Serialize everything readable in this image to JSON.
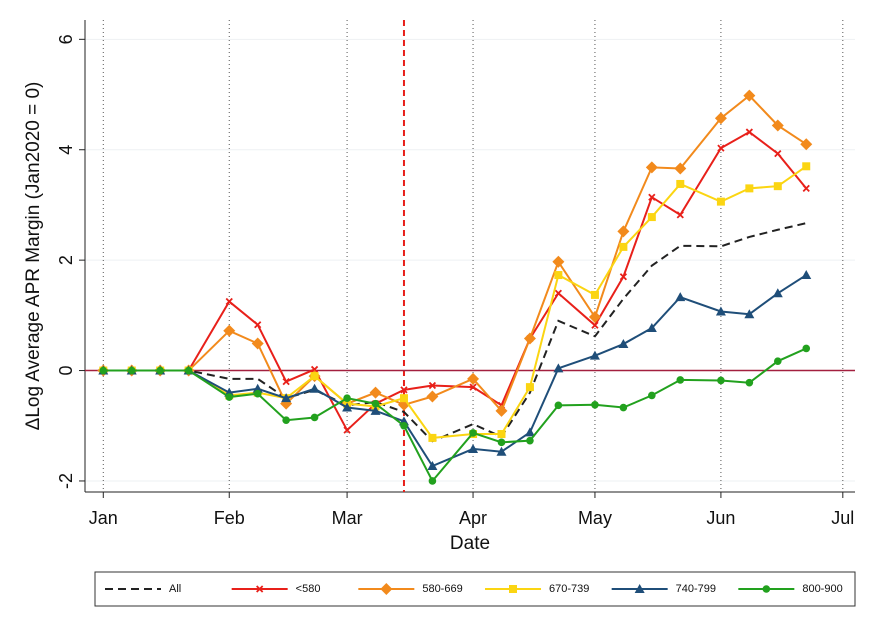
{
  "chart_data": {
    "type": "line",
    "y_label": "ΔLog Average APR Margin (Jan2020 = 0)",
    "x_label": "Date",
    "x": [
      0,
      7,
      14,
      21,
      31,
      38,
      45,
      52,
      60,
      67,
      74,
      81,
      91,
      98,
      105,
      112,
      121,
      128,
      135,
      142,
      152,
      159,
      166,
      173
    ],
    "xlim": [
      -4.5,
      185
    ],
    "xticks": [
      {
        "value": 0,
        "label": "Jan"
      },
      {
        "value": 31,
        "label": "Feb"
      },
      {
        "value": 60,
        "label": "Mar"
      },
      {
        "value": 91,
        "label": "Apr"
      },
      {
        "value": 121,
        "label": "May"
      },
      {
        "value": 152,
        "label": "Jun"
      },
      {
        "value": 182,
        "label": "Jul"
      }
    ],
    "ylim": [
      -2.2,
      6.35
    ],
    "yticks": [
      -2,
      0,
      2,
      4,
      6
    ],
    "grid": true,
    "vline": 74,
    "hline": 0,
    "legend": "bottom",
    "series": [
      {
        "name": "All",
        "color": "#222222",
        "marker": "none",
        "dash": true,
        "values": [
          0,
          0,
          0,
          0,
          -0.15,
          -0.15,
          -0.5,
          -0.35,
          -0.63,
          -0.57,
          -0.75,
          -1.28,
          -0.97,
          -1.2,
          -0.4,
          0.9,
          0.62,
          1.3,
          1.9,
          2.26,
          2.25,
          2.42,
          2.55,
          2.67
        ]
      },
      {
        "name": "<580",
        "color": "#e8201a",
        "marker": "x",
        "dash": false,
        "values": [
          0,
          0,
          0,
          0,
          1.25,
          0.83,
          -0.2,
          0.02,
          -1.08,
          -0.6,
          -0.35,
          -0.27,
          -0.3,
          -0.63,
          0.58,
          1.4,
          0.82,
          1.7,
          3.14,
          2.82,
          4.03,
          4.32,
          3.93,
          3.3
        ]
      },
      {
        "name": "580-669",
        "color": "#f28a1c",
        "marker": "diamond",
        "dash": false,
        "values": [
          0,
          0,
          0,
          0,
          0.72,
          0.49,
          -0.6,
          -0.1,
          -0.6,
          -0.4,
          -0.62,
          -0.47,
          -0.15,
          -0.73,
          0.58,
          1.97,
          0.97,
          2.52,
          3.68,
          3.66,
          4.57,
          4.98,
          4.44,
          4.1
        ]
      },
      {
        "name": "670-739",
        "color": "#fbd512",
        "marker": "square",
        "dash": false,
        "values": [
          0,
          0,
          0,
          0,
          -0.45,
          -0.4,
          -0.5,
          -0.1,
          -0.6,
          -0.65,
          -0.5,
          -1.22,
          -1.15,
          -1.15,
          -0.3,
          1.73,
          1.37,
          2.24,
          2.78,
          3.38,
          3.06,
          3.3,
          3.34,
          3.7
        ]
      },
      {
        "name": "740-799",
        "color": "#1f4e79",
        "marker": "triangle",
        "dash": false,
        "values": [
          0,
          0,
          0,
          0,
          -0.4,
          -0.33,
          -0.5,
          -0.33,
          -0.67,
          -0.73,
          -0.92,
          -1.73,
          -1.42,
          -1.47,
          -1.12,
          0.04,
          0.27,
          0.48,
          0.77,
          1.33,
          1.07,
          1.02,
          1.4,
          1.73
        ]
      },
      {
        "name": "800-900",
        "color": "#22a11e",
        "marker": "circle",
        "dash": false,
        "values": [
          0,
          0,
          0,
          0,
          -0.48,
          -0.42,
          -0.9,
          -0.85,
          -0.5,
          -0.6,
          -1.0,
          -2.0,
          -1.13,
          -1.3,
          -1.27,
          -0.63,
          -0.62,
          -0.67,
          -0.45,
          -0.17,
          -0.18,
          -0.22,
          0.17,
          0.4
        ]
      }
    ]
  }
}
